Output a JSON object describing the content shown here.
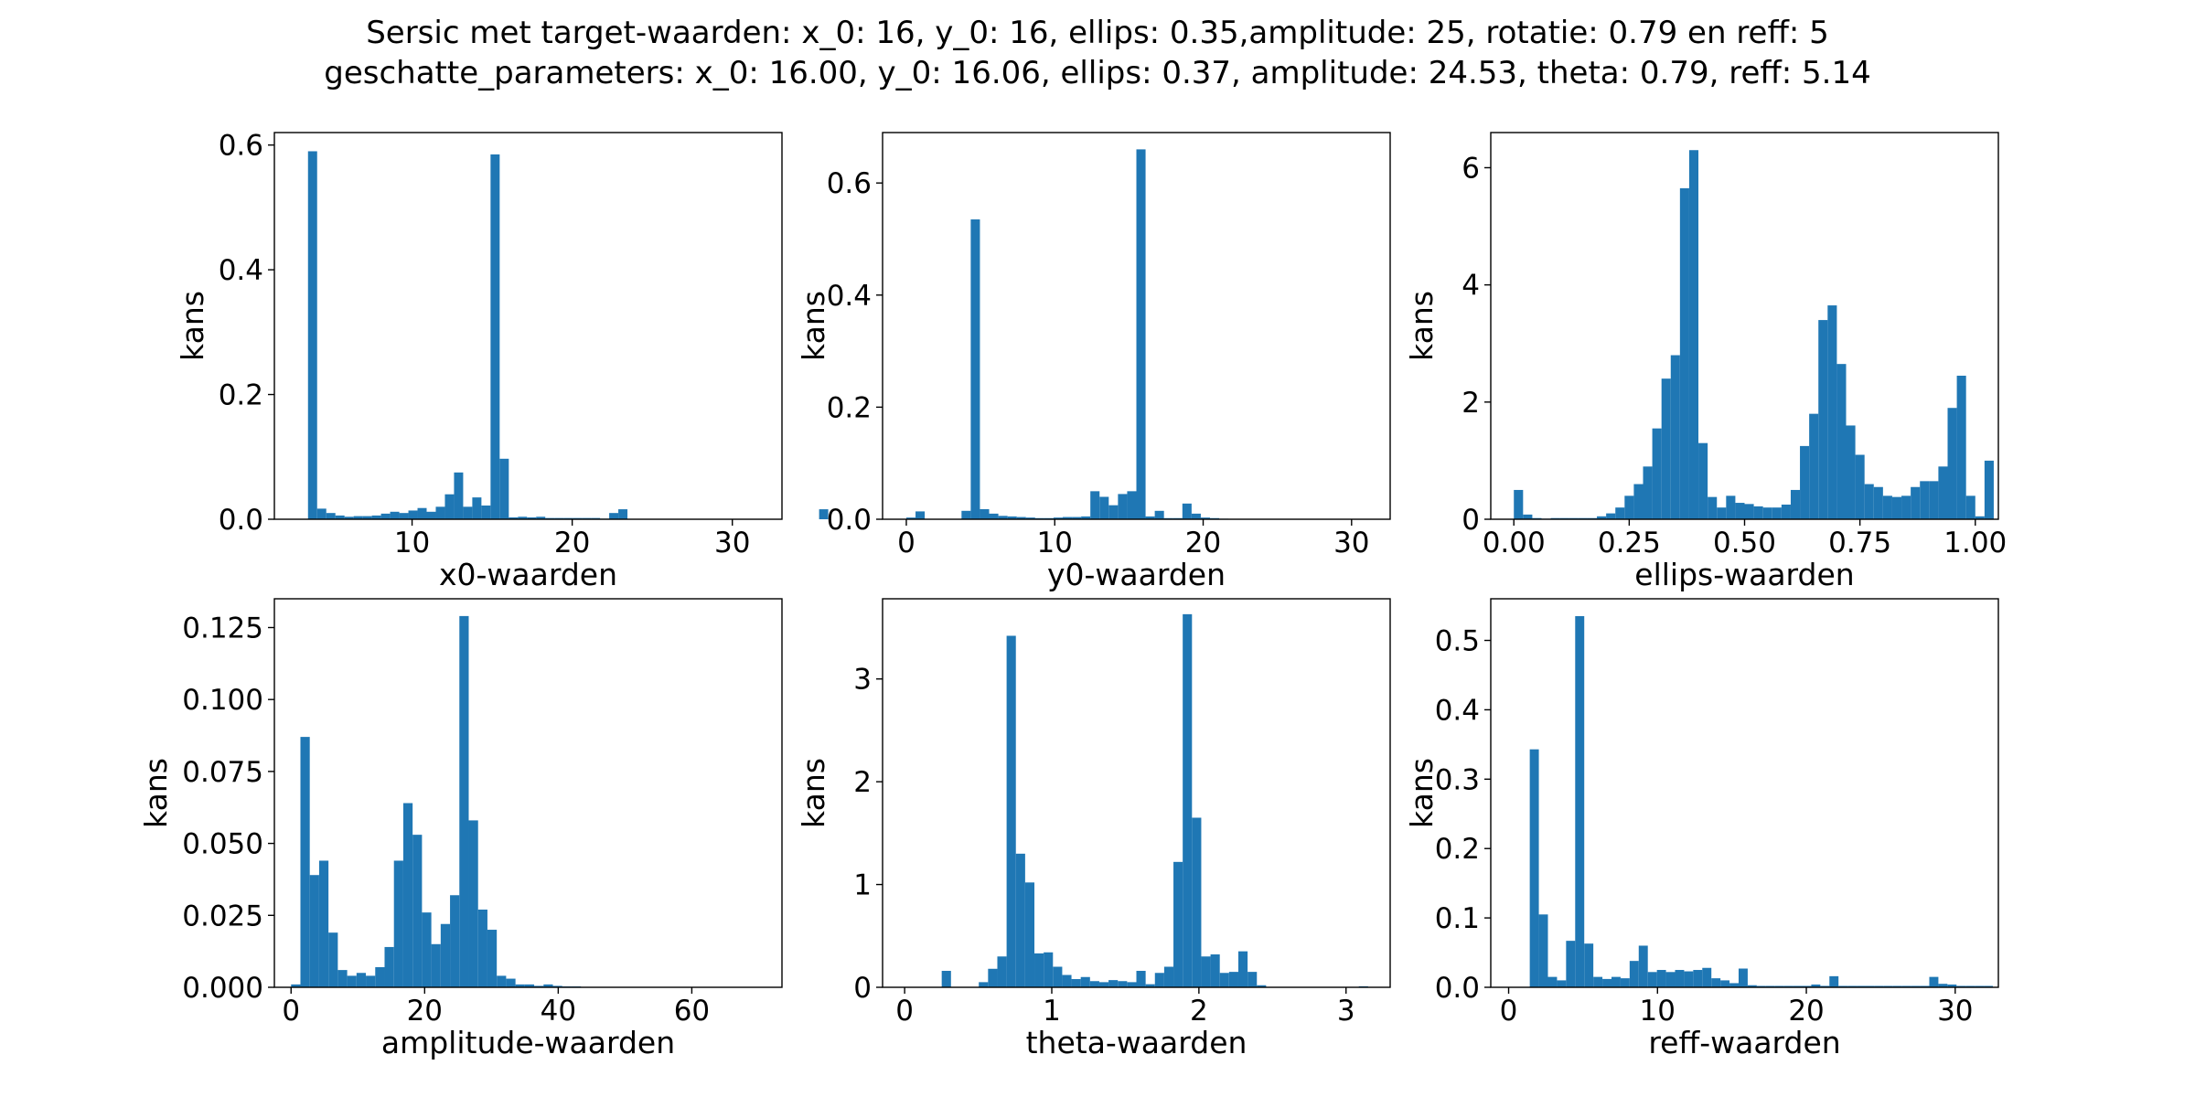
{
  "title_lines": [
    "Sersic met target-waarden: x_0: 16, y_0: 16, ellips: 0.35,amplitude: 25, rotatie: 0.79 en reff: 5",
    "geschatte_parameters: x_0: 16.00, y_0: 16.06, ellips: 0.37, amplitude: 24.53, theta: 0.79, reff: 5.14"
  ],
  "bar_color": "#1f77b4",
  "chart_data": [
    {
      "type": "bar",
      "xlabel": "x0-waarden",
      "ylabel": "kans",
      "xlim": [
        1.4,
        33.1
      ],
      "ylim": [
        0,
        0.62
      ],
      "xticks": [
        10,
        20,
        30
      ],
      "yticks": [
        0.0,
        0.2,
        0.4,
        0.6
      ],
      "tick_decimals": 1,
      "bin_start": 3.5,
      "bin_width": 0.57,
      "values": [
        0.59,
        0.017,
        0.01,
        0.006,
        0.004,
        0.005,
        0.005,
        0.006,
        0.009,
        0.012,
        0.01,
        0.014,
        0.018,
        0.012,
        0.02,
        0.04,
        0.075,
        0.02,
        0.035,
        0.022,
        0.585,
        0.097,
        0.003,
        0.004,
        0.003,
        0.004,
        0.002,
        0.002,
        0.002,
        0.002,
        0.002,
        0.002,
        0.001,
        0.01,
        0.016,
        0,
        0,
        0,
        0,
        0,
        0,
        0,
        0,
        0,
        0,
        0,
        0,
        0,
        0,
        0,
        0,
        0,
        0,
        0,
        0,
        0,
        0.016
      ]
    },
    {
      "type": "bar",
      "xlabel": "y0-waarden",
      "ylabel": "kans",
      "xlim": [
        -1.6,
        32.6
      ],
      "ylim": [
        0,
        0.69
      ],
      "xticks": [
        0,
        10,
        20,
        30
      ],
      "yticks": [
        0.0,
        0.2,
        0.4,
        0.6
      ],
      "tick_decimals": 1,
      "bin_start": 0,
      "bin_width": 0.62,
      "values": [
        0.003,
        0.014,
        0,
        0,
        0,
        0,
        0.015,
        0.535,
        0.018,
        0.01,
        0.006,
        0.005,
        0.004,
        0.003,
        0.002,
        0.002,
        0.003,
        0.004,
        0.004,
        0.005,
        0.05,
        0.04,
        0.025,
        0.045,
        0.05,
        0.66,
        0.005,
        0.015,
        0.002,
        0.002,
        0.028,
        0.01,
        0.003,
        0.002,
        0.001,
        0,
        0,
        0,
        0,
        0,
        0,
        0,
        0,
        0,
        0,
        0,
        0,
        0,
        0,
        0,
        0
      ]
    },
    {
      "type": "bar",
      "xlabel": "ellips-waarden",
      "ylabel": "kans",
      "xlim": [
        -0.05,
        1.05
      ],
      "ylim": [
        0,
        6.6
      ],
      "xticks": [
        0.0,
        0.25,
        0.5,
        0.75,
        1.0
      ],
      "yticks": [
        0,
        2,
        4,
        6
      ],
      "tick_decimals": 2,
      "y_tick_decimals": 0,
      "bin_start": 0,
      "bin_width": 0.02,
      "values": [
        0.5,
        0.08,
        0.02,
        0.01,
        0.02,
        0.02,
        0.02,
        0.02,
        0.02,
        0.05,
        0.1,
        0.2,
        0.4,
        0.6,
        0.9,
        1.55,
        2.4,
        2.8,
        5.65,
        6.3,
        1.3,
        0.38,
        0.2,
        0.4,
        0.28,
        0.26,
        0.22,
        0.2,
        0.2,
        0.25,
        0.5,
        1.25,
        1.8,
        3.4,
        3.65,
        2.65,
        1.6,
        1.1,
        0.6,
        0.55,
        0.4,
        0.38,
        0.4,
        0.55,
        0.65,
        0.65,
        0.9,
        1.9,
        2.45,
        0.4,
        0.05,
        1.0
      ]
    },
    {
      "type": "bar",
      "xlabel": "amplitude-waarden",
      "ylabel": "kans",
      "xlim": [
        -2.5,
        73.5
      ],
      "ylim": [
        0,
        0.135
      ],
      "xticks": [
        0,
        20,
        40,
        60
      ],
      "yticks": [
        0.0,
        0.025,
        0.05,
        0.075,
        0.1,
        0.125
      ],
      "tick_decimals": 3,
      "bin_start": 0,
      "bin_width": 1.4,
      "values": [
        0.001,
        0.087,
        0.039,
        0.044,
        0.019,
        0.006,
        0.004,
        0.005,
        0.004,
        0.007,
        0.014,
        0.044,
        0.064,
        0.053,
        0.026,
        0.015,
        0.022,
        0.032,
        0.129,
        0.058,
        0.027,
        0.02,
        0.004,
        0.003,
        0.001,
        0.001,
        0.0005,
        0.001,
        0.0005,
        0.0003,
        0.0003,
        0,
        0,
        0,
        0,
        0,
        0,
        0,
        0,
        0,
        0,
        0,
        0,
        0,
        0,
        0,
        0,
        0,
        0,
        0
      ]
    },
    {
      "type": "bar",
      "xlabel": "theta-waarden",
      "ylabel": "kans",
      "xlim": [
        -0.15,
        3.3
      ],
      "ylim": [
        0,
        3.78
      ],
      "xticks": [
        0,
        1,
        2,
        3
      ],
      "yticks": [
        0,
        1,
        2,
        3
      ],
      "tick_decimals": 0,
      "bin_start": 0,
      "bin_width": 0.063,
      "values": [
        0.003,
        0,
        0,
        0,
        0.16,
        0,
        0,
        0,
        0.05,
        0.18,
        0.3,
        3.42,
        1.3,
        1.02,
        0.33,
        0.34,
        0.2,
        0.12,
        0.08,
        0.1,
        0.06,
        0.05,
        0.07,
        0.06,
        0.05,
        0.16,
        0.03,
        0.14,
        0.2,
        1.22,
        3.63,
        1.65,
        0.3,
        0.32,
        0.14,
        0.15,
        0.35,
        0.15,
        0.02,
        0,
        0,
        0,
        0,
        0,
        0,
        0,
        0,
        0,
        0,
        0.01
      ]
    },
    {
      "type": "bar",
      "xlabel": "reff-waarden",
      "ylabel": "kans",
      "xlim": [
        -1.2,
        32.9
      ],
      "ylim": [
        0,
        0.56
      ],
      "xticks": [
        0,
        10,
        20,
        30
      ],
      "yticks": [
        0.0,
        0.1,
        0.2,
        0.3,
        0.4,
        0.5
      ],
      "tick_decimals": 1,
      "bin_start": 1.42,
      "bin_width": 0.61,
      "values": [
        0.343,
        0.105,
        0.015,
        0.01,
        0.067,
        0.535,
        0.063,
        0.015,
        0.012,
        0.015,
        0.013,
        0.038,
        0.06,
        0.022,
        0.025,
        0.022,
        0.025,
        0.023,
        0.025,
        0.028,
        0.013,
        0.01,
        0.006,
        0.027,
        0.003,
        0.002,
        0.002,
        0.002,
        0.002,
        0.002,
        0.002,
        0.004,
        0.002,
        0.016,
        0.002,
        0.002,
        0.002,
        0.002,
        0.002,
        0.002,
        0.002,
        0.002,
        0.002,
        0.002,
        0.015,
        0.005,
        0.004,
        0.002,
        0.002,
        0.002,
        0.002
      ]
    }
  ]
}
